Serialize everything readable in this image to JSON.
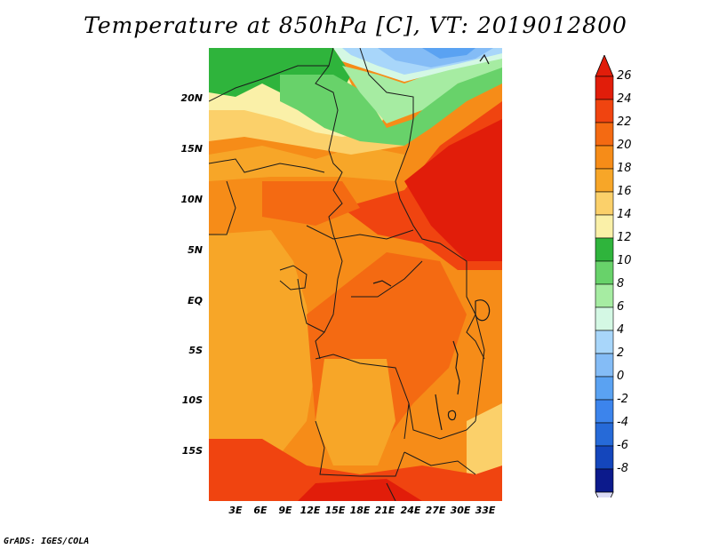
{
  "title": "Temperature at 850hPa [C], VT: 2019012800",
  "credit": "GrADS: IGES/COLA",
  "map": {
    "region": "Central Africa",
    "lat_labels": [
      "20N",
      "15N",
      "10N",
      "5N",
      "EQ",
      "5S",
      "10S",
      "15S"
    ],
    "lon_labels": [
      "3E",
      "6E",
      "9E",
      "12E",
      "15E",
      "18E",
      "21E",
      "24E",
      "27E",
      "30E",
      "33E"
    ]
  },
  "colorbar": {
    "labels": [
      "26",
      "24",
      "22",
      "20",
      "18",
      "16",
      "14",
      "12",
      "10",
      "8",
      "6",
      "4",
      "2",
      "0",
      "-2",
      "-4",
      "-6",
      "-8"
    ],
    "colors": [
      "#e11d0a",
      "#f04410",
      "#f46a12",
      "#f68c18",
      "#f7a628",
      "#fbd06a",
      "#faf0a8",
      "#2fb43c",
      "#68d26a",
      "#a6eca2",
      "#d4f8e4",
      "#a8d6fa",
      "#84bcf6",
      "#5aa2f2",
      "#3c84ec",
      "#266ad8",
      "#1446bc",
      "#0c1a8c"
    ],
    "under_color": "#dcdcf6"
  }
}
